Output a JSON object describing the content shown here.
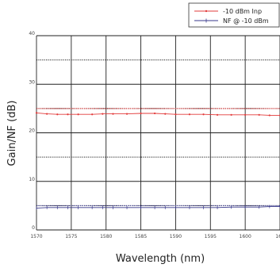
{
  "chart_data": {
    "type": "line",
    "xlabel": "Wavelength (nm)",
    "ylabel": "Gain/NF (dB)",
    "xlim": [
      1570,
      1605
    ],
    "ylim": [
      0,
      40
    ],
    "x_ticks": [
      "1570",
      "1575",
      "1580",
      "1585",
      "1590",
      "1595",
      "1600",
      "160"
    ],
    "y_ticks": [
      "0",
      "10",
      "20",
      "30",
      "40"
    ],
    "grid": true,
    "legend_position": "top-right",
    "series": [
      {
        "name": "-10 dBm Inp",
        "color": "#e23b3b",
        "x": [
          1570,
          1571.5,
          1573,
          1574.5,
          1576,
          1578,
          1579.5,
          1581,
          1583,
          1585,
          1587,
          1588.5,
          1590,
          1592,
          1594,
          1596,
          1598,
          1600,
          1602,
          1603.5,
          1605
        ],
        "y": [
          24.1,
          23.9,
          23.8,
          23.8,
          23.8,
          23.8,
          23.9,
          23.9,
          23.9,
          24.0,
          24.0,
          23.9,
          23.8,
          23.8,
          23.8,
          23.7,
          23.7,
          23.7,
          23.7,
          23.6,
          23.6
        ]
      },
      {
        "name": "NF @ -10 dBm",
        "color": "#3a3a8c",
        "x": [
          1570,
          1571.5,
          1573,
          1574.5,
          1576,
          1578,
          1579.5,
          1581,
          1583,
          1585,
          1587,
          1588.5,
          1590,
          1592,
          1594,
          1596,
          1598,
          1600,
          1602,
          1603.5,
          1605
        ],
        "y": [
          4.5,
          4.6,
          4.6,
          4.6,
          4.6,
          4.6,
          4.6,
          4.6,
          4.6,
          4.6,
          4.6,
          4.6,
          4.6,
          4.6,
          4.6,
          4.6,
          4.7,
          4.7,
          4.7,
          4.8,
          4.8
        ]
      }
    ],
    "reference_lines": [
      {
        "y": 5,
        "color": "#3a3a8c"
      },
      {
        "y": 25,
        "color": "#e23b3b"
      }
    ]
  }
}
